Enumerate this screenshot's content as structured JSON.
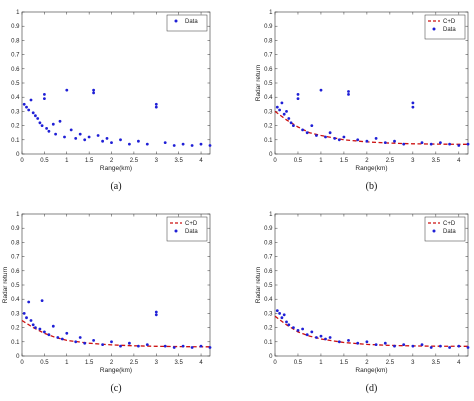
{
  "chart_data": [
    {
      "panel": "(a)",
      "type": "scatter",
      "xlabel": "Range(km)",
      "ylabel": "",
      "xlim": [
        0,
        4.2
      ],
      "ylim": [
        0,
        1
      ],
      "xticks": [
        "0",
        "0.5",
        "1",
        "1.5",
        "2",
        "2.5",
        "3",
        "3.5",
        "4"
      ],
      "yticks": [
        "0",
        "0.1",
        "0.2",
        "0.3",
        "0.4",
        "0.5",
        "0.6",
        "0.7",
        "0.8",
        "0.9",
        "1"
      ],
      "legend": {
        "position": "top-right",
        "entries": [
          "Data"
        ]
      },
      "series": [
        {
          "name": "Data",
          "marker": "dot",
          "color": "#1f1fd6",
          "points": [
            [
              0.05,
              0.35
            ],
            [
              0.1,
              0.33
            ],
            [
              0.15,
              0.31
            ],
            [
              0.2,
              0.38
            ],
            [
              0.25,
              0.29
            ],
            [
              0.3,
              0.27
            ],
            [
              0.35,
              0.25
            ],
            [
              0.4,
              0.22
            ],
            [
              0.45,
              0.2
            ],
            [
              0.5,
              0.42
            ],
            [
              0.5,
              0.39
            ],
            [
              0.55,
              0.18
            ],
            [
              0.6,
              0.16
            ],
            [
              0.7,
              0.21
            ],
            [
              0.75,
              0.14
            ],
            [
              0.85,
              0.23
            ],
            [
              0.95,
              0.12
            ],
            [
              1.0,
              0.45
            ],
            [
              1.1,
              0.17
            ],
            [
              1.2,
              0.11
            ],
            [
              1.3,
              0.14
            ],
            [
              1.4,
              0.1
            ],
            [
              1.5,
              0.12
            ],
            [
              1.6,
              0.43
            ],
            [
              1.6,
              0.45
            ],
            [
              1.7,
              0.13
            ],
            [
              1.8,
              0.09
            ],
            [
              1.9,
              0.11
            ],
            [
              2.0,
              0.08
            ],
            [
              2.2,
              0.1
            ],
            [
              2.4,
              0.07
            ],
            [
              2.6,
              0.09
            ],
            [
              2.8,
              0.07
            ],
            [
              3.0,
              0.35
            ],
            [
              3.0,
              0.33
            ],
            [
              3.2,
              0.08
            ],
            [
              3.4,
              0.06
            ],
            [
              3.6,
              0.07
            ],
            [
              3.8,
              0.06
            ],
            [
              4.0,
              0.07
            ],
            [
              4.2,
              0.06
            ]
          ]
        }
      ]
    },
    {
      "panel": "(b)",
      "type": "scatter",
      "xlabel": "Range(km)",
      "ylabel": "Radar return",
      "xlim": [
        0,
        4.2
      ],
      "ylim": [
        0,
        1
      ],
      "xticks": [
        "0",
        "0.5",
        "1",
        "1.5",
        "2",
        "2.5",
        "3",
        "3.5",
        "4"
      ],
      "yticks": [
        "0",
        "0.1",
        "0.2",
        "0.3",
        "0.4",
        "0.5",
        "0.6",
        "0.7",
        "0.8",
        "0.9",
        "1"
      ],
      "legend": {
        "position": "top-right",
        "entries": [
          "C+D",
          "Data"
        ]
      },
      "series": [
        {
          "name": "C+D",
          "marker": "dashed-line",
          "color": "#cc1111",
          "points": [
            [
              0,
              0.3
            ],
            [
              0.25,
              0.24
            ],
            [
              0.5,
              0.19
            ],
            [
              0.75,
              0.15
            ],
            [
              1.0,
              0.13
            ],
            [
              1.5,
              0.1
            ],
            [
              2.0,
              0.085
            ],
            [
              2.5,
              0.077
            ],
            [
              3.0,
              0.072
            ],
            [
              3.5,
              0.07
            ],
            [
              4.0,
              0.068
            ],
            [
              4.2,
              0.068
            ]
          ]
        },
        {
          "name": "Data",
          "marker": "dot",
          "color": "#1f1fd6",
          "points": [
            [
              0.05,
              0.33
            ],
            [
              0.1,
              0.31
            ],
            [
              0.15,
              0.36
            ],
            [
              0.2,
              0.28
            ],
            [
              0.25,
              0.3
            ],
            [
              0.3,
              0.25
            ],
            [
              0.35,
              0.22
            ],
            [
              0.4,
              0.2
            ],
            [
              0.5,
              0.42
            ],
            [
              0.5,
              0.39
            ],
            [
              0.6,
              0.17
            ],
            [
              0.7,
              0.15
            ],
            [
              0.8,
              0.2
            ],
            [
              0.9,
              0.13
            ],
            [
              1.0,
              0.45
            ],
            [
              1.1,
              0.12
            ],
            [
              1.2,
              0.15
            ],
            [
              1.3,
              0.11
            ],
            [
              1.4,
              0.1
            ],
            [
              1.5,
              0.12
            ],
            [
              1.6,
              0.44
            ],
            [
              1.6,
              0.42
            ],
            [
              1.8,
              0.1
            ],
            [
              2.0,
              0.09
            ],
            [
              2.2,
              0.11
            ],
            [
              2.4,
              0.08
            ],
            [
              2.6,
              0.09
            ],
            [
              2.8,
              0.07
            ],
            [
              3.0,
              0.36
            ],
            [
              3.0,
              0.33
            ],
            [
              3.2,
              0.08
            ],
            [
              3.4,
              0.07
            ],
            [
              3.6,
              0.08
            ],
            [
              3.8,
              0.07
            ],
            [
              4.0,
              0.06
            ],
            [
              4.2,
              0.07
            ]
          ]
        }
      ]
    },
    {
      "panel": "(c)",
      "type": "scatter",
      "xlabel": "Range(km)",
      "ylabel": "Radar return",
      "xlim": [
        0,
        4.2
      ],
      "ylim": [
        0,
        1
      ],
      "xticks": [
        "0",
        "0.5",
        "1",
        "1.5",
        "2",
        "2.5",
        "3",
        "3.5",
        "4"
      ],
      "yticks": [
        "0",
        "0.1",
        "0.2",
        "0.3",
        "0.4",
        "0.5",
        "0.6",
        "0.7",
        "0.8",
        "0.9",
        "1"
      ],
      "legend": {
        "position": "top-right",
        "entries": [
          "C+D",
          "Data"
        ]
      },
      "series": [
        {
          "name": "C+D",
          "marker": "dashed-line",
          "color": "#cc1111",
          "points": [
            [
              0,
              0.25
            ],
            [
              0.25,
              0.2
            ],
            [
              0.5,
              0.16
            ],
            [
              0.75,
              0.13
            ],
            [
              1.0,
              0.11
            ],
            [
              1.5,
              0.09
            ],
            [
              2.0,
              0.078
            ],
            [
              2.5,
              0.072
            ],
            [
              3.0,
              0.068
            ],
            [
              3.5,
              0.066
            ],
            [
              4.0,
              0.065
            ],
            [
              4.2,
              0.065
            ]
          ]
        },
        {
          "name": "Data",
          "marker": "dot",
          "color": "#1f1fd6",
          "points": [
            [
              0.05,
              0.3
            ],
            [
              0.1,
              0.27
            ],
            [
              0.15,
              0.38
            ],
            [
              0.2,
              0.25
            ],
            [
              0.25,
              0.22
            ],
            [
              0.3,
              0.2
            ],
            [
              0.4,
              0.19
            ],
            [
              0.45,
              0.39
            ],
            [
              0.5,
              0.17
            ],
            [
              0.6,
              0.15
            ],
            [
              0.7,
              0.21
            ],
            [
              0.8,
              0.13
            ],
            [
              0.9,
              0.12
            ],
            [
              1.0,
              0.16
            ],
            [
              1.2,
              0.1
            ],
            [
              1.3,
              0.13
            ],
            [
              1.4,
              0.09
            ],
            [
              1.6,
              0.11
            ],
            [
              1.8,
              0.08
            ],
            [
              2.0,
              0.1
            ],
            [
              2.2,
              0.07
            ],
            [
              2.4,
              0.09
            ],
            [
              2.6,
              0.07
            ],
            [
              2.8,
              0.08
            ],
            [
              3.0,
              0.31
            ],
            [
              3.0,
              0.29
            ],
            [
              3.2,
              0.07
            ],
            [
              3.4,
              0.06
            ],
            [
              3.6,
              0.07
            ],
            [
              3.8,
              0.06
            ],
            [
              4.0,
              0.07
            ],
            [
              4.2,
              0.06
            ]
          ]
        }
      ]
    },
    {
      "panel": "(d)",
      "type": "scatter",
      "xlabel": "Range(km)",
      "ylabel": "Radar return",
      "xlim": [
        0,
        4.2
      ],
      "ylim": [
        0,
        1
      ],
      "xticks": [
        "0",
        "0.5",
        "1",
        "1.5",
        "2",
        "2.5",
        "3",
        "3.5",
        "4"
      ],
      "yticks": [
        "0",
        "0.1",
        "0.2",
        "0.3",
        "0.4",
        "0.5",
        "0.6",
        "0.7",
        "0.8",
        "0.9",
        "1"
      ],
      "legend": {
        "position": "top-right",
        "entries": [
          "C+D",
          "Data"
        ]
      },
      "series": [
        {
          "name": "C+D",
          "marker": "dashed-line",
          "color": "#cc1111",
          "points": [
            [
              0,
              0.28
            ],
            [
              0.25,
              0.22
            ],
            [
              0.5,
              0.17
            ],
            [
              0.75,
              0.14
            ],
            [
              1.0,
              0.12
            ],
            [
              1.5,
              0.095
            ],
            [
              2.0,
              0.082
            ],
            [
              2.5,
              0.075
            ],
            [
              3.0,
              0.071
            ],
            [
              3.5,
              0.069
            ],
            [
              4.0,
              0.068
            ],
            [
              4.2,
              0.068
            ]
          ]
        },
        {
          "name": "Data",
          "marker": "dot",
          "color": "#1f1fd6",
          "points": [
            [
              0.05,
              0.32
            ],
            [
              0.1,
              0.3
            ],
            [
              0.15,
              0.27
            ],
            [
              0.2,
              0.29
            ],
            [
              0.25,
              0.24
            ],
            [
              0.3,
              0.22
            ],
            [
              0.4,
              0.2
            ],
            [
              0.5,
              0.18
            ],
            [
              0.6,
              0.19
            ],
            [
              0.7,
              0.15
            ],
            [
              0.8,
              0.17
            ],
            [
              0.9,
              0.13
            ],
            [
              1.0,
              0.14
            ],
            [
              1.1,
              0.12
            ],
            [
              1.2,
              0.13
            ],
            [
              1.4,
              0.1
            ],
            [
              1.6,
              0.11
            ],
            [
              1.8,
              0.09
            ],
            [
              2.0,
              0.1
            ],
            [
              2.2,
              0.08
            ],
            [
              2.4,
              0.09
            ],
            [
              2.6,
              0.07
            ],
            [
              2.8,
              0.08
            ],
            [
              3.0,
              0.07
            ],
            [
              3.2,
              0.08
            ],
            [
              3.4,
              0.06
            ],
            [
              3.6,
              0.07
            ],
            [
              3.8,
              0.06
            ],
            [
              4.0,
              0.07
            ],
            [
              4.2,
              0.06
            ]
          ]
        }
      ]
    }
  ]
}
